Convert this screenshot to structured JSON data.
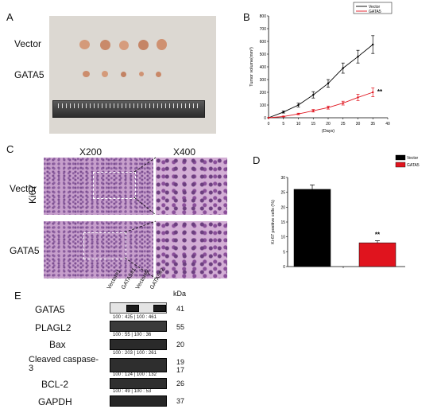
{
  "panelA": {
    "letter": "A",
    "row_labels": [
      "Vector",
      "GATA5"
    ]
  },
  "panelB": {
    "letter": "B"
  },
  "panelC": {
    "letter": "C",
    "col_labels": [
      "X200",
      "X400"
    ],
    "row_labels": [
      "Vector",
      "GATA5"
    ],
    "side_label": "Ki67"
  },
  "panelD": {
    "letter": "D"
  },
  "panelE": {
    "letter": "E",
    "lanes": [
      "Vector#1",
      "GATA5#1",
      "Vector#2",
      "GATA5#2"
    ],
    "kda_label": "kDa",
    "blots": [
      {
        "name": "GATA5",
        "kda": "41",
        "ratio": "100 : 425 | 100 : 461"
      },
      {
        "name": "PLAGL2",
        "kda": "55",
        "ratio": "100 : 55 | 100 : 36"
      },
      {
        "name": "Bax",
        "kda": "20",
        "ratio": "100 : 203 | 100 : 261"
      },
      {
        "name": "Cleaved caspase-3",
        "kda": "19 17",
        "ratio": "100 : 124 | 100 : 132"
      },
      {
        "name": "BCL-2",
        "kda": "26",
        "ratio": "100 : 49 | 100 : 53"
      },
      {
        "name": "GAPDH",
        "kda": "37",
        "ratio": ""
      }
    ]
  },
  "chart_data": [
    {
      "type": "line",
      "ylabel": "Tumor volume(mm³)",
      "xlabel": "(Days)",
      "x": [
        0,
        5,
        10,
        15,
        20,
        25,
        30,
        35
      ],
      "xlim": [
        0,
        40
      ],
      "ylim": [
        0,
        800
      ],
      "xticks": [
        "0",
        "5",
        "10",
        "15",
        "20",
        "25",
        "30",
        "35",
        "40"
      ],
      "yticks": [
        "0",
        "100",
        "200",
        "300",
        "400",
        "500",
        "600",
        "700",
        "800"
      ],
      "legend_position": "top-right",
      "series": [
        {
          "name": "Vector",
          "color": "#000000",
          "values": [
            0,
            45,
            100,
            180,
            270,
            390,
            480,
            575
          ],
          "errors": [
            0,
            8,
            15,
            25,
            30,
            40,
            50,
            70
          ]
        },
        {
          "name": "GATA5",
          "color": "#e0141e",
          "values": [
            0,
            10,
            30,
            55,
            80,
            115,
            160,
            200
          ],
          "errors": [
            0,
            3,
            6,
            10,
            12,
            15,
            25,
            35
          ]
        }
      ],
      "annotation": "**"
    },
    {
      "type": "bar",
      "ylabel": "Ki-67 positive cells (%)",
      "categories": [
        "Vector",
        "GATA5"
      ],
      "values": [
        26,
        8
      ],
      "errors": [
        1.5,
        0.7
      ],
      "colors": [
        "#000000",
        "#e0141e"
      ],
      "ylim": [
        0,
        30
      ],
      "yticks": [
        "0",
        "5",
        "10",
        "15",
        "20",
        "25",
        "30"
      ],
      "legend_position": "top-right",
      "annotation": "**"
    }
  ]
}
